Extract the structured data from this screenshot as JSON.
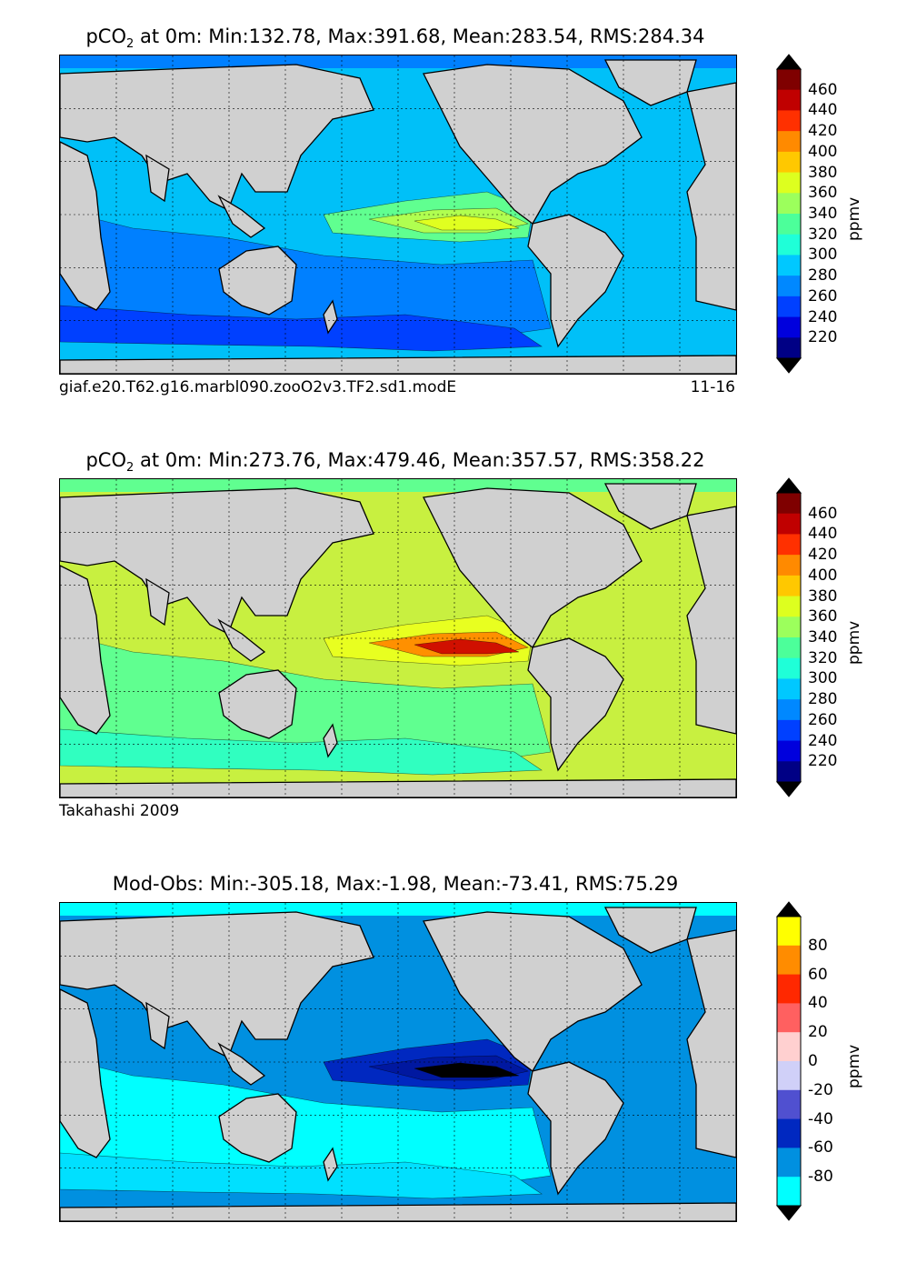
{
  "panels": [
    {
      "id": "model",
      "title_parts": [
        "pCO",
        "2",
        " at 0m: Min:132.78, Max:391.68, Mean:283.54, RMS:284.34"
      ],
      "caption_left": "giaf.e20.T62.g16.marbl090.zooO2v3.TF2.sd1.modE",
      "caption_right": "11-16",
      "colorbar": {
        "label": "ppmv",
        "ticks": [
          "460",
          "440",
          "420",
          "400",
          "380",
          "360",
          "340",
          "320",
          "300",
          "280",
          "260",
          "240",
          "220"
        ],
        "colors": [
          "#7f0000",
          "#c00000",
          "#ff3000",
          "#ff8a00",
          "#ffc800",
          "#ddff1f",
          "#9cff5c",
          "#4cff9a",
          "#1fffd8",
          "#00c8ff",
          "#0088ff",
          "#0040ff",
          "#0000dd",
          "#000085"
        ]
      },
      "palette": {
        "base": "#00c0f8",
        "low": "#0080ff",
        "lower": "#0040ff",
        "high": "#60ff90",
        "higher": "#b0ff50",
        "peak": "#e0ff20",
        "land": "#d0d0d0"
      }
    },
    {
      "id": "obs",
      "title_parts": [
        "pCO",
        "2",
        " at 0m: Min:273.76, Max:479.46, Mean:357.57, RMS:358.22"
      ],
      "caption_left": "Takahashi 2009",
      "caption_right": "",
      "colorbar": {
        "label": "ppmv",
        "ticks": [
          "460",
          "440",
          "420",
          "400",
          "380",
          "360",
          "340",
          "320",
          "300",
          "280",
          "260",
          "240",
          "220"
        ],
        "colors": [
          "#7f0000",
          "#c00000",
          "#ff3000",
          "#ff8a00",
          "#ffc800",
          "#ddff1f",
          "#9cff5c",
          "#4cff9a",
          "#1fffd8",
          "#00c8ff",
          "#0088ff",
          "#0040ff",
          "#0000dd",
          "#000085"
        ]
      },
      "palette": {
        "base": "#c8f040",
        "low": "#60ff90",
        "lower": "#30ffc0",
        "high": "#e8ff20",
        "higher": "#ff9000",
        "peak": "#d01000",
        "land": "#d0d0d0"
      }
    },
    {
      "id": "diff",
      "title_parts": [
        "Mod-Obs: Min:-305.18, Max:-1.98, Mean:-73.41, RMS:75.29",
        "",
        ""
      ],
      "caption_left": "",
      "caption_right": "",
      "colorbar": {
        "label": "ppmv",
        "ticks": [
          "80",
          "60",
          "40",
          "20",
          "0",
          "-20",
          "-40",
          "-60",
          "-80"
        ],
        "colors": [
          "#ffff00",
          "#ff8c00",
          "#ff2800",
          "#ff6060",
          "#ffd0d0",
          "#d0d0f8",
          "#5050d0",
          "#0028c0",
          "#0090e0",
          "#00ffff"
        ]
      },
      "palette": {
        "base": "#0090e0",
        "low": "#00ffff",
        "lower": "#00e0ff",
        "high": "#0028c0",
        "higher": "#0018a0",
        "peak": "#000000",
        "land": "#d0d0d0"
      }
    }
  ]
}
